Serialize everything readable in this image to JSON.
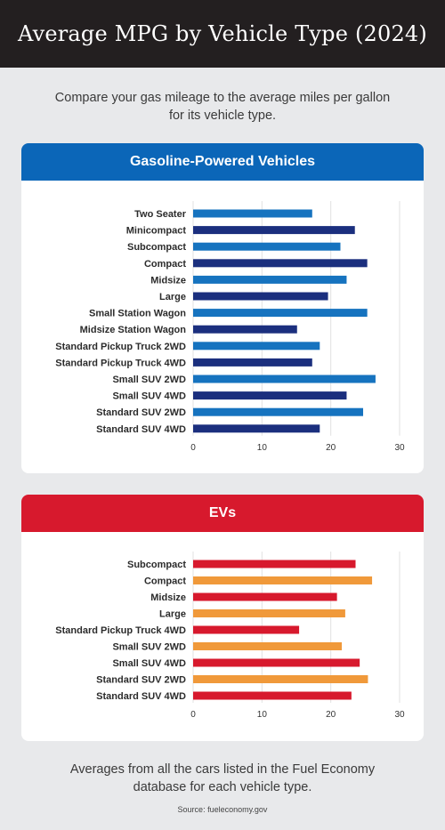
{
  "title": "Average MPG by Vehicle Type (2024)",
  "intro": "Compare your gas mileage to the average miles per gallon for its vehicle type.",
  "footer_note": "Averages from all the cars listed in the Fuel Economy database for each vehicle type.",
  "source": "Source: fueleconomy.gov",
  "colors": {
    "gas_header": "#0b66b8",
    "ev_header": "#d7192d",
    "gas_bar_light": "#1673bf",
    "gas_bar_dark": "#1b2f7e",
    "ev_bar_red": "#d7192d",
    "ev_bar_orange": "#f0993a"
  },
  "chart_data": [
    {
      "type": "bar",
      "orientation": "horizontal",
      "title": "Gasoline-Powered Vehicles",
      "categories": [
        "Two Seater",
        "Minicompact",
        "Subcompact",
        "Compact",
        "Midsize",
        "Large",
        "Small Station Wagon",
        "Midsize Station Wagon",
        "Standard Pickup Truck 2WD",
        "Standard Pickup Truck 4WD",
        "Small SUV 2WD",
        "Small SUV 4WD",
        "Standard SUV 2WD",
        "Standard SUV 4WD"
      ],
      "values": [
        17.3,
        23.5,
        21.4,
        25.3,
        22.3,
        19.6,
        25.3,
        15.1,
        18.4,
        17.3,
        26.5,
        22.3,
        24.7,
        18.4
      ],
      "bar_colors": [
        "light",
        "dark",
        "light",
        "dark",
        "light",
        "dark",
        "light",
        "dark",
        "light",
        "dark",
        "light",
        "dark",
        "light",
        "dark"
      ],
      "xlim": [
        0,
        30
      ],
      "xticks": [
        0,
        10,
        20,
        30
      ],
      "grid": "vertical"
    },
    {
      "type": "bar",
      "orientation": "horizontal",
      "title": "EVs",
      "categories": [
        "Subcompact",
        "Compact",
        "Midsize",
        "Large",
        "Standard Pickup Truck 4WD",
        "Small SUV 2WD",
        "Small SUV 4WD",
        "Standard SUV 2WD",
        "Standard SUV 4WD"
      ],
      "values": [
        23.6,
        26.0,
        20.9,
        22.1,
        15.4,
        21.6,
        24.2,
        25.4,
        23.0
      ],
      "bar_colors": [
        "red",
        "orange",
        "red",
        "orange",
        "red",
        "orange",
        "red",
        "orange",
        "red"
      ],
      "xlim": [
        0,
        30
      ],
      "xticks": [
        0,
        10,
        20,
        30
      ],
      "grid": "vertical"
    }
  ]
}
